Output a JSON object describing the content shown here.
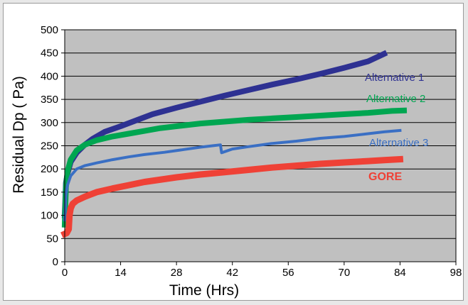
{
  "chart_data": {
    "type": "line",
    "title": "",
    "xlabel": "Time (Hrs)",
    "ylabel": "Residual Dp ( Pa)",
    "xlim": [
      0,
      98
    ],
    "ylim": [
      0,
      500
    ],
    "x_ticks": [
      0,
      14,
      28,
      42,
      56,
      70,
      84,
      98
    ],
    "y_ticks": [
      0,
      50,
      100,
      150,
      200,
      250,
      300,
      350,
      400,
      450,
      500
    ],
    "grid": true,
    "plot_background": "#c0c0c0",
    "legend": "labels placed next to line ends",
    "series": [
      {
        "name": "Alternative 1",
        "color": "#2e3192",
        "x": [
          0,
          0.3,
          0.7,
          1.5,
          3,
          5,
          7,
          10,
          14,
          18,
          22,
          28,
          34,
          40,
          46,
          52,
          58,
          64,
          70,
          76,
          80
        ],
        "values": [
          100,
          170,
          190,
          215,
          235,
          252,
          265,
          280,
          292,
          305,
          318,
          332,
          345,
          358,
          370,
          382,
          393,
          405,
          418,
          432,
          448
        ]
      },
      {
        "name": "Alternative 2",
        "color": "#00a651",
        "x": [
          0,
          0.3,
          0.7,
          1.5,
          3,
          5,
          8,
          12,
          16,
          20,
          24,
          28,
          34,
          40,
          46,
          52,
          58,
          64,
          70,
          76,
          82,
          85
        ],
        "values": [
          80,
          160,
          195,
          220,
          240,
          252,
          262,
          270,
          276,
          282,
          288,
          292,
          298,
          302,
          306,
          309,
          312,
          315,
          318,
          321,
          325,
          326
        ]
      },
      {
        "name": "Alternative 3",
        "color": "#3a6fc4",
        "x": [
          0,
          0.3,
          0.7,
          1.5,
          3,
          5,
          8,
          12,
          16,
          20,
          25,
          30,
          34,
          37,
          39,
          39.3,
          42,
          46,
          52,
          58,
          64,
          70,
          76,
          80,
          84
        ],
        "values": [
          90,
          145,
          165,
          185,
          200,
          207,
          213,
          220,
          226,
          231,
          236,
          242,
          247,
          250,
          252,
          235,
          243,
          248,
          255,
          260,
          266,
          270,
          276,
          280,
          283
        ]
      },
      {
        "name": "GORE",
        "color": "#ef4136",
        "x": [
          0,
          0.5,
          1,
          1.2,
          1.5,
          2,
          3,
          5,
          8,
          12,
          16,
          20,
          28,
          34,
          40,
          46,
          52,
          58,
          64,
          70,
          76,
          80,
          84
        ],
        "values": [
          60,
          62,
          70,
          100,
          115,
          125,
          132,
          140,
          150,
          158,
          165,
          172,
          182,
          188,
          193,
          198,
          203,
          207,
          211,
          214,
          217,
          219,
          221
        ]
      }
    ]
  }
}
